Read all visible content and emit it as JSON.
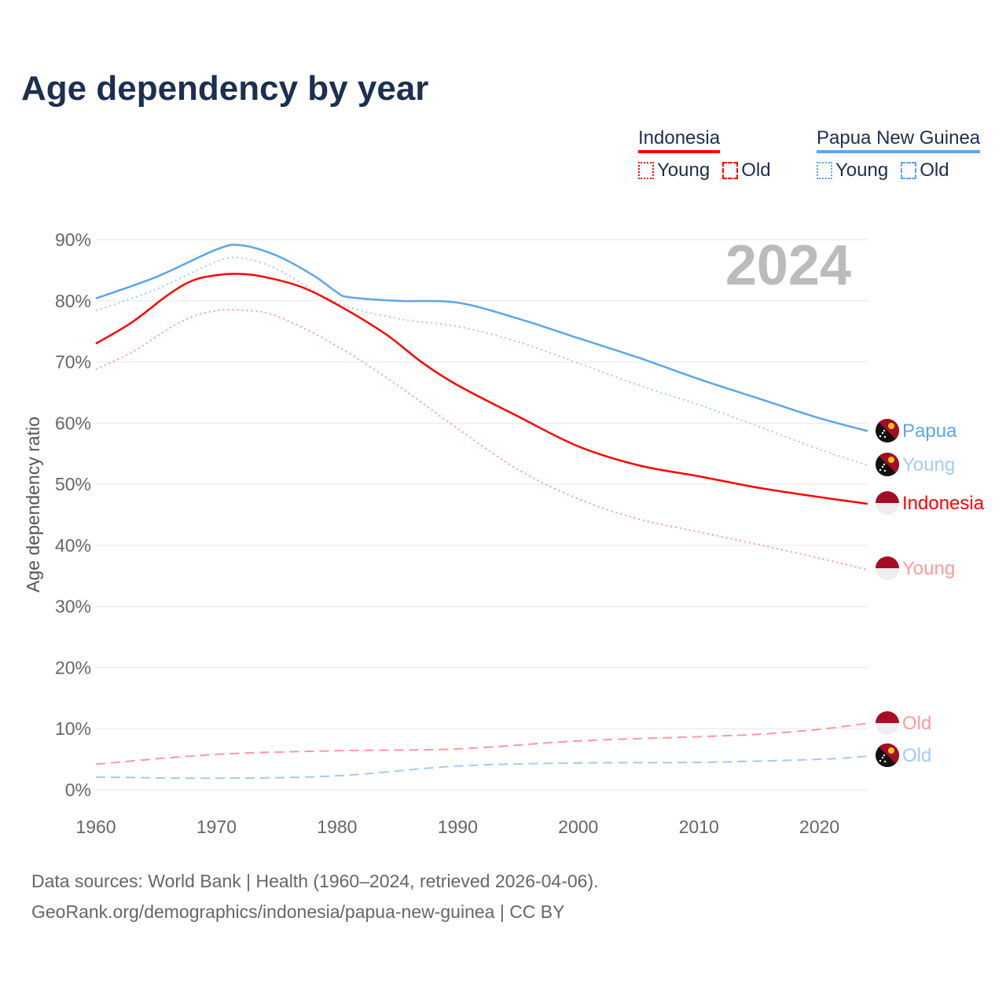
{
  "title": "Age dependency by year",
  "legend": {
    "groups": [
      {
        "name": "Indonesia",
        "color": "#ff0000",
        "light": "#ff9999",
        "young": "Young",
        "old": "Old"
      },
      {
        "name": "Papua New Guinea",
        "color": "#5da5ea",
        "light": "#a5caf2",
        "young": "Young",
        "old": "Old"
      }
    ]
  },
  "footer": {
    "line1": "Data sources: World Bank | Health (1960–2024, retrieved 2026-04-06).",
    "line2": "GeoRank.org/demographics/indonesia/papua-new-guinea | CC BY"
  },
  "chart_data": {
    "type": "line",
    "title": "Age dependency by year",
    "ylabel": "Age dependency ratio",
    "xlabel": "",
    "year_label": "2024",
    "xlim": [
      1960,
      2024
    ],
    "ylim": [
      0,
      90
    ],
    "x_ticks": [
      "1960",
      "1970",
      "1980",
      "1990",
      "2000",
      "2010",
      "2020"
    ],
    "y_ticks": [
      "0%",
      "10%",
      "20%",
      "30%",
      "40%",
      "50%",
      "60%",
      "70%",
      "80%",
      "90%"
    ],
    "grid": true,
    "series": [
      {
        "name": "Papua New Guinea total",
        "end_label": "Papua",
        "flag": "png",
        "color": "#5da5ea",
        "dash": "solid",
        "x": [
          1960,
          1965,
          1970,
          1972,
          1975,
          1978,
          1980,
          1981,
          1985,
          1990,
          1995,
          2000,
          2005,
          2010,
          2015,
          2020,
          2024
        ],
        "y": [
          80.4,
          83.9,
          88.4,
          89.1,
          87.4,
          84.2,
          81.4,
          80.6,
          80.0,
          79.7,
          77.1,
          73.9,
          70.7,
          67.2,
          64.0,
          60.8,
          58.7
        ]
      },
      {
        "name": "Papua New Guinea young",
        "end_label": "Young",
        "flag": "png",
        "color": "#a5caf2",
        "dash": "dotted",
        "x": [
          1960,
          1965,
          1970,
          1972,
          1975,
          1980,
          1985,
          1990,
          1995,
          2000,
          2005,
          2010,
          2015,
          2020,
          2024
        ],
        "y": [
          78.4,
          81.9,
          86.4,
          87.0,
          85.2,
          79.7,
          77.1,
          75.8,
          73.3,
          69.8,
          66.2,
          63.0,
          59.4,
          55.7,
          53.1
        ]
      },
      {
        "name": "Indonesia total",
        "end_label": "Indonesia",
        "flag": "idn",
        "color": "#ff0000",
        "dash": "solid",
        "x": [
          1960,
          1963,
          1966,
          1968,
          1970,
          1972,
          1974,
          1977,
          1980,
          1984,
          1987,
          1990,
          1995,
          2000,
          2005,
          2010,
          2015,
          2020,
          2024
        ],
        "y": [
          73.0,
          76.5,
          81.0,
          83.3,
          84.2,
          84.4,
          83.9,
          82.3,
          79.4,
          74.6,
          70.0,
          66.2,
          61.1,
          56.2,
          53.1,
          51.3,
          49.4,
          47.9,
          46.8
        ]
      },
      {
        "name": "Indonesia young",
        "end_label": "Young",
        "flag": "idn",
        "color": "#ff9999",
        "dash": "dotted",
        "x": [
          1960,
          1963,
          1966,
          1968,
          1970,
          1972,
          1975,
          1980,
          1985,
          1990,
          1995,
          2000,
          2005,
          2010,
          2015,
          2020,
          2024
        ],
        "y": [
          68.8,
          71.6,
          75.4,
          77.4,
          78.4,
          78.5,
          77.5,
          72.6,
          66.2,
          59.1,
          52.4,
          47.6,
          44.3,
          42.2,
          40.1,
          37.9,
          36.0
        ]
      },
      {
        "name": "Indonesia old",
        "end_label": "Old",
        "flag": "idn",
        "color": "#ff9999",
        "dash": "dashed",
        "x": [
          1960,
          1970,
          1980,
          1990,
          2000,
          2010,
          2015,
          2020,
          2024
        ],
        "y": [
          4.2,
          5.8,
          6.4,
          6.7,
          8.0,
          8.7,
          9.1,
          9.9,
          10.9
        ]
      },
      {
        "name": "Papua New Guinea old",
        "end_label": "Old",
        "flag": "png",
        "color": "#a5caf2",
        "dash": "dashed",
        "x": [
          1960,
          1970,
          1980,
          1990,
          2000,
          2010,
          2020,
          2024
        ],
        "y": [
          2.1,
          1.9,
          2.3,
          3.9,
          4.4,
          4.5,
          5.0,
          5.5
        ]
      }
    ]
  }
}
